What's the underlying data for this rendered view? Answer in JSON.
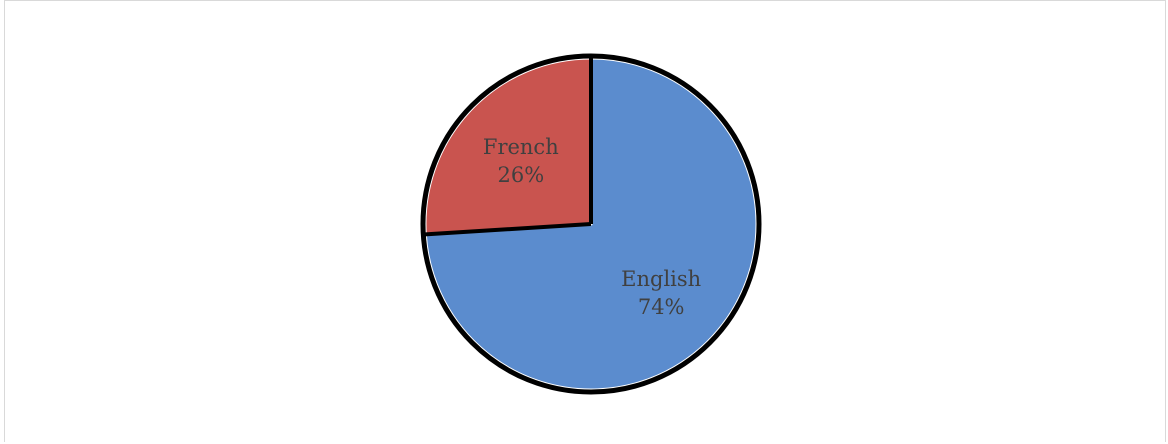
{
  "chart_data": {
    "type": "pie",
    "title": "",
    "categories": [
      "English",
      "French"
    ],
    "values": [
      74,
      26
    ],
    "labels": [
      {
        "name": "English",
        "percent": "74%"
      },
      {
        "name": "French",
        "percent": "26%"
      }
    ],
    "colors": [
      "#5b8cce",
      "#c9544f"
    ],
    "outline_color": "#000000",
    "separator_color": "#ffffff",
    "legend": "none",
    "start_angle": "12 o'clock",
    "direction": "clockwise"
  }
}
